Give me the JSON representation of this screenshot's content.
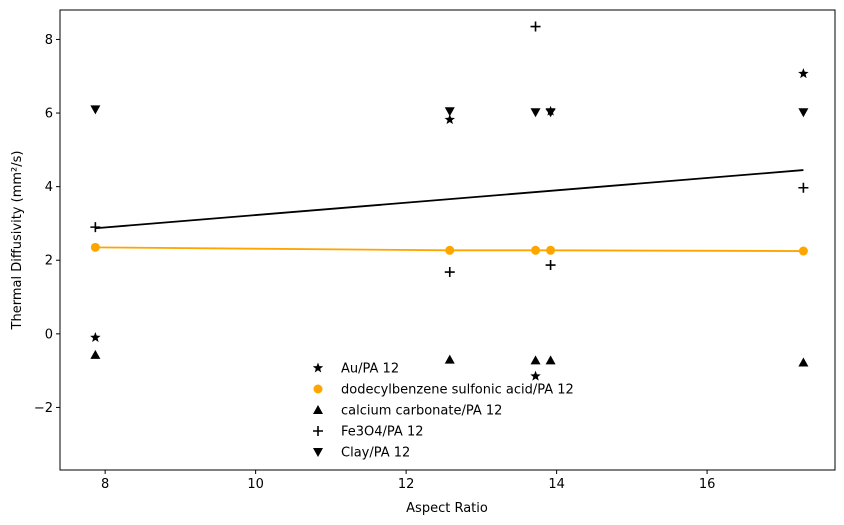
{
  "chart_data": {
    "type": "scatter",
    "xlabel": "Aspect Ratio",
    "ylabel": "Thermal Diffusivity (mm²/s)",
    "xlim": [
      7.4,
      17.7
    ],
    "ylim": [
      -3.7,
      8.8
    ],
    "xticks": [
      8,
      10,
      12,
      14,
      16
    ],
    "xtick_labels": [
      "8",
      "10",
      "12",
      "14",
      "16"
    ],
    "yticks": [
      -2,
      0,
      2,
      4,
      6,
      8
    ],
    "ytick_labels": [
      "−2",
      "0",
      "2",
      "4",
      "6",
      "8"
    ],
    "grid": false,
    "legend_position": "lower center",
    "series": [
      {
        "name": "Au/PA 12",
        "marker": "star",
        "color": "#000000",
        "points": [
          [
            7.87,
            -0.1
          ],
          [
            12.58,
            5.82
          ],
          [
            13.72,
            -1.15
          ],
          [
            13.92,
            6.05
          ],
          [
            17.28,
            7.07
          ]
        ]
      },
      {
        "name": "dodecylbenzene sulfonic acid/PA 12",
        "marker": "circle",
        "color": "#ffa500",
        "points": [
          [
            7.87,
            2.35
          ],
          [
            12.58,
            2.27
          ],
          [
            13.72,
            2.27
          ],
          [
            13.92,
            2.27
          ],
          [
            17.28,
            2.25
          ]
        ]
      },
      {
        "name": "calcium carbonate/PA 12",
        "marker": "triangle-up",
        "color": "#000000",
        "points": [
          [
            7.87,
            -0.57
          ],
          [
            12.58,
            -0.7
          ],
          [
            13.72,
            -0.72
          ],
          [
            13.92,
            -0.72
          ],
          [
            17.28,
            -0.78
          ]
        ]
      },
      {
        "name": "Fe3O4/PA 12",
        "marker": "plus",
        "color": "#000000",
        "points": [
          [
            7.87,
            2.9
          ],
          [
            12.58,
            1.68
          ],
          [
            13.72,
            8.35
          ],
          [
            13.92,
            1.87
          ],
          [
            17.28,
            3.97
          ]
        ]
      },
      {
        "name": "Clay/PA 12",
        "marker": "triangle-down",
        "color": "#000000",
        "points": [
          [
            7.87,
            6.1
          ],
          [
            12.58,
            6.05
          ],
          [
            13.72,
            6.02
          ],
          [
            13.92,
            6.02
          ],
          [
            17.28,
            6.02
          ]
        ]
      }
    ],
    "lines": [
      {
        "color": "#000000",
        "x": [
          7.87,
          17.28
        ],
        "y": [
          2.87,
          4.45
        ]
      },
      {
        "color": "#ffa500",
        "x": [
          7.87,
          12.58,
          13.72,
          13.92,
          17.28
        ],
        "y": [
          2.35,
          2.27,
          2.27,
          2.27,
          2.25
        ]
      }
    ]
  }
}
